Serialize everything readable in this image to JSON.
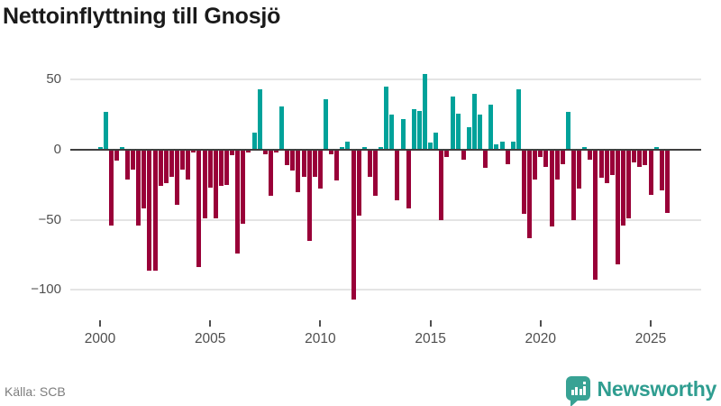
{
  "title": "Nettoinflyttning till Gnosjö",
  "source": "Källa: SCB",
  "logo": {
    "text": "Newsworthy",
    "badge_color": "#38a294",
    "text_color": "#2f9d90",
    "icon": "bar-chart-exclamation-speech-bubble"
  },
  "chart_data": {
    "type": "bar",
    "title": "Nettoinflyttning till Gnosjö",
    "x_start": "2000 Q1",
    "x_end": "2025 Q4",
    "periods_per_year": 4,
    "xlabel": "",
    "ylabel": "",
    "ylim": [
      -115,
      60
    ],
    "grid": true,
    "y_ticks": [
      50,
      0,
      -50,
      -100
    ],
    "y_tick_labels": [
      "50",
      "0",
      "−50",
      "−100"
    ],
    "x_tick_years": [
      2000,
      2005,
      2010,
      2015,
      2020,
      2025
    ],
    "x_tick_labels": [
      "2000",
      "2005",
      "2010",
      "2015",
      "2020",
      "2025"
    ],
    "positive_color": "#00a29a",
    "negative_color": "#990038",
    "zero_line_color": "#3f3f3f",
    "grid_color": "#e4e4e4",
    "axis_text_color": "#4f4f4f",
    "values": [
      2,
      27,
      -54,
      -8,
      2,
      -21,
      -14,
      -54,
      -42,
      -86,
      -86,
      -26,
      -24,
      -19,
      -39,
      -14,
      -21,
      -2,
      -84,
      -49,
      -27,
      -49,
      -26,
      -25,
      -4,
      -74,
      -53,
      -2,
      12,
      43,
      -3,
      -33,
      -2,
      31,
      -11,
      -15,
      -30,
      -19,
      -65,
      -19,
      -28,
      36,
      -3,
      -22,
      2,
      6,
      -107,
      -47,
      2,
      -19,
      -33,
      2,
      45,
      25,
      -36,
      22,
      -42,
      29,
      28,
      54,
      5,
      12,
      -50,
      -5,
      38,
      26,
      -7,
      16,
      40,
      25,
      -13,
      32,
      4,
      6,
      -10,
      6,
      43,
      -46,
      -63,
      -21,
      -5,
      -12,
      -55,
      -21,
      -10,
      27,
      -50,
      -28,
      2,
      -7,
      -93,
      -20,
      -24,
      -18,
      -82,
      -54,
      -49,
      -9,
      -12,
      -11,
      -32,
      2,
      -29,
      -45
    ]
  }
}
